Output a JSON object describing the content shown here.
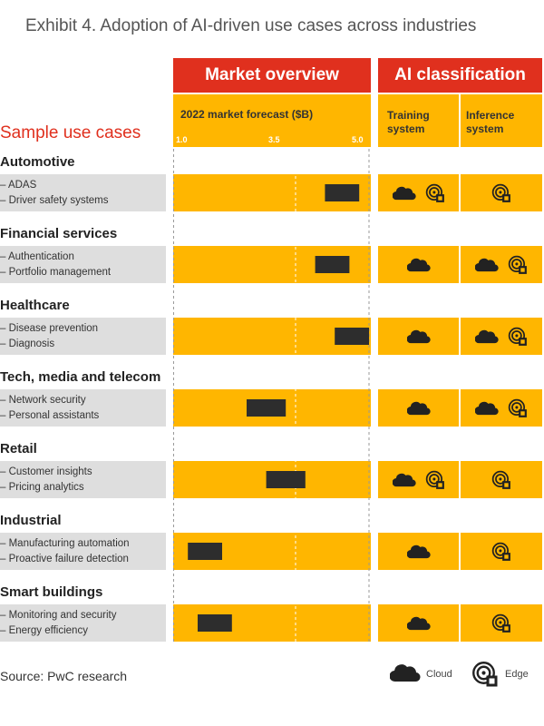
{
  "title": "Exhibit 4. Adoption of AI-driven use cases across industries",
  "headers": {
    "market": "Market overview",
    "ai": "AI classification",
    "forecast": "2022 market forecast ($B)",
    "training": [
      "Training",
      "system"
    ],
    "inference": [
      "Inference",
      "system"
    ]
  },
  "sample_label": "Sample use cases",
  "source": "Source: PwC research",
  "legend": {
    "cloud": "Cloud",
    "edge": "Edge"
  },
  "colors": {
    "accent_red": "#e0301e",
    "band_yellow": "#ffb600",
    "bar": "#2d2d2d",
    "case_gray": "#dedede"
  },
  "chart_data": {
    "type": "bar",
    "orientation": "horizontal-range",
    "title": "2022 market forecast ($B)",
    "xlim": [
      1.0,
      5.0
    ],
    "ticks": [
      "1.0",
      "3.5",
      "5.0"
    ],
    "categories": [
      "Automotive",
      "Financial services",
      "Healthcare",
      "Tech, media and telecom",
      "Retail",
      "Industrial",
      "Smart buildings"
    ],
    "ranges": [
      [
        4.1,
        4.8
      ],
      [
        3.9,
        4.6
      ],
      [
        4.3,
        5.0
      ],
      [
        2.5,
        3.3
      ],
      [
        2.9,
        3.7
      ],
      [
        1.3,
        2.0
      ],
      [
        1.5,
        2.2
      ]
    ]
  },
  "rows": [
    {
      "category": "Automotive",
      "cases": [
        "– ADAS",
        "– Driver safety systems"
      ],
      "training": [
        "cloud",
        "edge"
      ],
      "inference": [
        "edge"
      ]
    },
    {
      "category": "Financial services",
      "cases": [
        "– Authentication",
        "– Portfolio management"
      ],
      "training": [
        "cloud"
      ],
      "inference": [
        "cloud",
        "edge"
      ]
    },
    {
      "category": "Healthcare",
      "cases": [
        "– Disease prevention",
        "– Diagnosis"
      ],
      "training": [
        "cloud"
      ],
      "inference": [
        "cloud",
        "edge"
      ]
    },
    {
      "category": "Tech, media and telecom",
      "cases": [
        "– Network security",
        "– Personal assistants"
      ],
      "training": [
        "cloud"
      ],
      "inference": [
        "cloud",
        "edge"
      ]
    },
    {
      "category": "Retail",
      "cases": [
        "– Customer insights",
        "– Pricing analytics"
      ],
      "training": [
        "cloud",
        "edge"
      ],
      "inference": [
        "edge"
      ]
    },
    {
      "category": "Industrial",
      "cases": [
        "– Manufacturing automation",
        "– Proactive failure detection"
      ],
      "training": [
        "cloud"
      ],
      "inference": [
        "edge"
      ]
    },
    {
      "category": "Smart buildings",
      "cases": [
        "– Monitoring and security",
        "– Energy efficiency"
      ],
      "training": [
        "cloud"
      ],
      "inference": [
        "edge"
      ]
    }
  ]
}
